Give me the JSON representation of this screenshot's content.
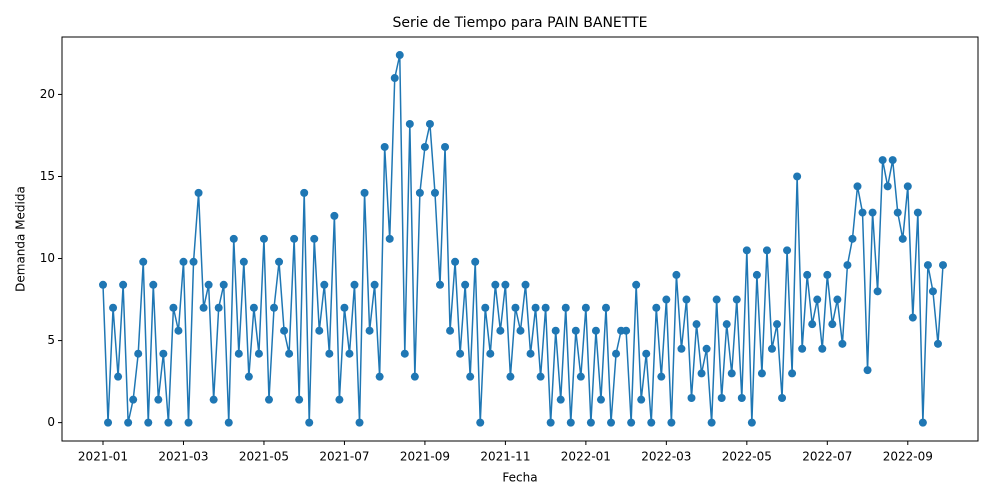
{
  "chart_data": {
    "type": "line",
    "title": "Serie de Tiempo para PAIN BANETTE",
    "x_label": "Fecha",
    "y_label": "Demanda Medida",
    "x": [
      "2021-01",
      "2021-01",
      "2021-01",
      "2021-01",
      "2021-01",
      "2021-01",
      "2021-01",
      "2021-01",
      "2021-02",
      "2021-02",
      "2021-02",
      "2021-02",
      "2021-02",
      "2021-02",
      "2021-02",
      "2021-02",
      "2021-03",
      "2021-03",
      "2021-03",
      "2021-03",
      "2021-03",
      "2021-03",
      "2021-03",
      "2021-03",
      "2021-04",
      "2021-04",
      "2021-04",
      "2021-04",
      "2021-04",
      "2021-04",
      "2021-04",
      "2021-04",
      "2021-05",
      "2021-05",
      "2021-05",
      "2021-05",
      "2021-05",
      "2021-05",
      "2021-05",
      "2021-05",
      "2021-06",
      "2021-06",
      "2021-06",
      "2021-06",
      "2021-06",
      "2021-06",
      "2021-06",
      "2021-06",
      "2021-07",
      "2021-07",
      "2021-07",
      "2021-07",
      "2021-07",
      "2021-07",
      "2021-07",
      "2021-07",
      "2021-08",
      "2021-08",
      "2021-08",
      "2021-08",
      "2021-08",
      "2021-08",
      "2021-08",
      "2021-08",
      "2021-09",
      "2021-09",
      "2021-09",
      "2021-09",
      "2021-09",
      "2021-09",
      "2021-09",
      "2021-09",
      "2021-10",
      "2021-10",
      "2021-10",
      "2021-10",
      "2021-10",
      "2021-10",
      "2021-10",
      "2021-10",
      "2021-11",
      "2021-11",
      "2021-11",
      "2021-11",
      "2021-11",
      "2021-11",
      "2021-11",
      "2021-11",
      "2021-12",
      "2021-12",
      "2021-12",
      "2021-12",
      "2021-12",
      "2021-12",
      "2021-12",
      "2021-12",
      "2022-01",
      "2022-01",
      "2022-01",
      "2022-01",
      "2022-01",
      "2022-01",
      "2022-01",
      "2022-01",
      "2022-02",
      "2022-02",
      "2022-02",
      "2022-02",
      "2022-02",
      "2022-02",
      "2022-02",
      "2022-02",
      "2022-03",
      "2022-03",
      "2022-03",
      "2022-03",
      "2022-03",
      "2022-03",
      "2022-03",
      "2022-03",
      "2022-04",
      "2022-04",
      "2022-04",
      "2022-04",
      "2022-04",
      "2022-04",
      "2022-04",
      "2022-04",
      "2022-05",
      "2022-05",
      "2022-05",
      "2022-05",
      "2022-05",
      "2022-05",
      "2022-05",
      "2022-05",
      "2022-06",
      "2022-06",
      "2022-06",
      "2022-06",
      "2022-06",
      "2022-06",
      "2022-06",
      "2022-06",
      "2022-07",
      "2022-07",
      "2022-07",
      "2022-07",
      "2022-07",
      "2022-07",
      "2022-07",
      "2022-07",
      "2022-08",
      "2022-08",
      "2022-08",
      "2022-08",
      "2022-08",
      "2022-08",
      "2022-08",
      "2022-08",
      "2022-09",
      "2022-09",
      "2022-09",
      "2022-09",
      "2022-09",
      "2022-09",
      "2022-09",
      "2022-09"
    ],
    "series": [
      {
        "color": "#1f77b4",
        "values": [
          8.4,
          0,
          7,
          2.8,
          8.4,
          0,
          1.4,
          4.2,
          9.8,
          0,
          8.4,
          1.4,
          4.2,
          0,
          7,
          5.6,
          9.8,
          0,
          9.8,
          14,
          7,
          8.4,
          1.4,
          7,
          8.4,
          0,
          11.2,
          4.2,
          9.8,
          2.8,
          7,
          4.2,
          11.2,
          1.4,
          7,
          9.8,
          5.6,
          4.2,
          11.2,
          1.4,
          14,
          0,
          11.2,
          5.6,
          8.4,
          4.2,
          12.6,
          1.4,
          7,
          4.2,
          8.4,
          0,
          14,
          5.6,
          8.4,
          2.8,
          16.8,
          11.2,
          21,
          22.4,
          4.2,
          18.2,
          2.8,
          14,
          16.8,
          18.2,
          14,
          8.4,
          16.8,
          5.6,
          9.8,
          4.2,
          8.4,
          2.8,
          9.8,
          0,
          7,
          4.2,
          8.4,
          5.6,
          8.4,
          2.8,
          7,
          5.6,
          8.4,
          4.2,
          7,
          2.8,
          7,
          0,
          5.6,
          1.4,
          7,
          0,
          5.6,
          2.8,
          7,
          0,
          5.6,
          1.4,
          7,
          0,
          4.2,
          5.6,
          5.6,
          0,
          8.4,
          1.4,
          4.2,
          0,
          7,
          2.8,
          7.5,
          0,
          9,
          4.5,
          7.5,
          1.5,
          6,
          3,
          4.5,
          0,
          7.5,
          1.5,
          6,
          3,
          7.5,
          1.5,
          10.5,
          0,
          9,
          3,
          10.5,
          4.5,
          6,
          1.5,
          10.5,
          3,
          15,
          4.5,
          9,
          6,
          7.5,
          4.5,
          9,
          6,
          7.5,
          4.8,
          9.6,
          11.2,
          14.4,
          12.8,
          3.2,
          12.8,
          8,
          16,
          14.4,
          16,
          12.8,
          11.2,
          14.4,
          6.4,
          12.8,
          0,
          9.6,
          8,
          4.8,
          9.6
        ]
      }
    ],
    "xticks": [
      "2021-01",
      "2021-03",
      "2021-05",
      "2021-07",
      "2021-09",
      "2021-11",
      "2022-01",
      "2022-03",
      "2022-05",
      "2022-07",
      "2022-09"
    ],
    "ylim": [
      -1.12,
      23.5
    ],
    "yticks": [
      0,
      5,
      10,
      15,
      20
    ],
    "grid": false
  }
}
